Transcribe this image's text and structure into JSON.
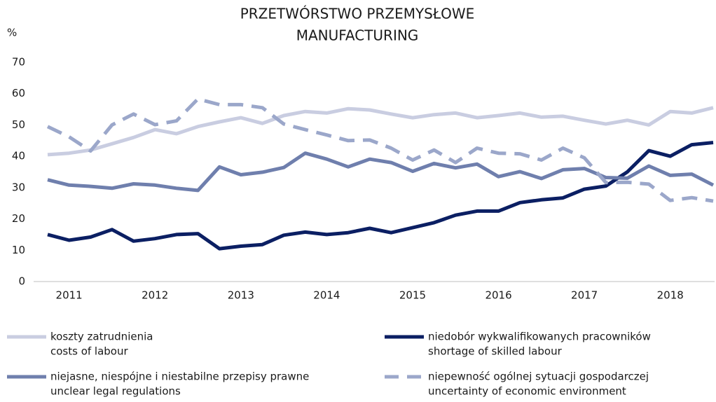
{
  "chart_data": {
    "type": "line",
    "title": [
      "PRZETWÓRSTWO PRZEMYSŁOWE",
      "MANUFACTURING"
    ],
    "y_label": "%",
    "categories": [
      null,
      "2011",
      null,
      null,
      null,
      "2012",
      null,
      null,
      null,
      "2013",
      null,
      null,
      null,
      "2014",
      null,
      null,
      null,
      "2015",
      null,
      null,
      null,
      "2016",
      null,
      null,
      null,
      "2017",
      null,
      null,
      null,
      "2018",
      null,
      null
    ],
    "ylim": [
      0,
      70
    ],
    "yticks": [
      0,
      10,
      20,
      30,
      40,
      50,
      60,
      70
    ],
    "series": [
      {
        "name": [
          "koszty zatrudnienia",
          "costs of labour"
        ],
        "color": "#c9cde1",
        "dash": false,
        "values": [
          40.5,
          41,
          42,
          44,
          46,
          48.5,
          47.2,
          49.5,
          51,
          52.3,
          50.5,
          53,
          54.3,
          53.8,
          55.2,
          54.8,
          53.5,
          52.3,
          53.3,
          53.8,
          52.3,
          53,
          53.8,
          52.5,
          52.8,
          51.5,
          50.3,
          51.5,
          50,
          54.3,
          53.8,
          55.5
        ]
      },
      {
        "name": [
          "niedobór wykwalifikowanych pracowników",
          "shortage of skilled labour"
        ],
        "color": "#0b1f63",
        "dash": false,
        "values": [
          15,
          13.2,
          14.2,
          16.6,
          12.9,
          13.7,
          15,
          15.3,
          10.5,
          11.3,
          11.8,
          14.8,
          15.8,
          15,
          15.6,
          17,
          15.6,
          17.2,
          18.8,
          21.2,
          22.5,
          22.5,
          25.2,
          26.1,
          26.7,
          29.5,
          30.5,
          35,
          41.8,
          40,
          43.7,
          44.4
        ]
      },
      {
        "name": [
          "niejasne, niespójne i niestabilne przepisy prawne",
          "unclear legal regulations"
        ],
        "color": "#6f7fad",
        "dash": false,
        "values": [
          32.5,
          30.8,
          30.4,
          29.8,
          31.2,
          30.8,
          29.8,
          29.1,
          36.6,
          34.1,
          34.9,
          36.4,
          41,
          39.1,
          36.6,
          39.1,
          38,
          35.2,
          37.7,
          36.3,
          37.5,
          33.5,
          35.1,
          32.9,
          35.7,
          36.1,
          33.2,
          33,
          36.9,
          33.9,
          34.3,
          30.8
        ]
      },
      {
        "name": [
          "niepewność ogólnej sytuacji gospodarczej",
          "uncertainty of economic environment"
        ],
        "color": "#9ba7ca",
        "dash": true,
        "values": [
          49.5,
          46.2,
          41.7,
          50,
          53.5,
          50.1,
          51.3,
          58.3,
          56.5,
          56.5,
          55.5,
          50.3,
          48.5,
          46.8,
          45,
          45.2,
          42.6,
          38.8,
          42,
          38,
          42.6,
          41,
          40.8,
          38.8,
          42.6,
          39.5,
          31.6,
          31.7,
          31.1,
          25.9,
          26.8,
          25.7
        ]
      }
    ]
  }
}
